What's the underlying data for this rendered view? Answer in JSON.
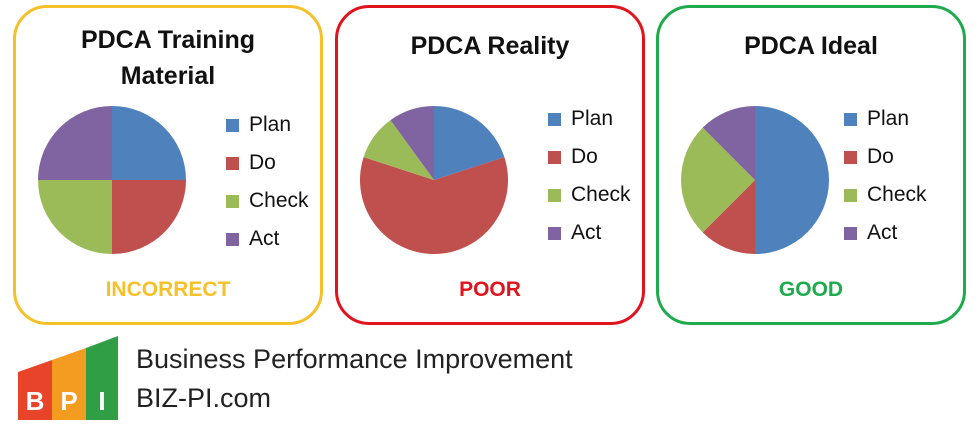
{
  "legend": {
    "labels": [
      "Plan",
      "Do",
      "Check",
      "Act"
    ],
    "colors": [
      "#4f81bd",
      "#c0504d",
      "#9bbb59",
      "#8064a2"
    ]
  },
  "panels": [
    {
      "title": "PDCA Training Material",
      "verdict": "INCORRECT",
      "border_color": "#f5c02a",
      "verdict_color": "#f5c02a"
    },
    {
      "title": "PDCA Reality",
      "verdict": "POOR",
      "border_color": "#e0141d",
      "verdict_color": "#e0141d"
    },
    {
      "title": "PDCA Ideal",
      "verdict": "GOOD",
      "border_color": "#1faa4d",
      "verdict_color": "#1faa4d"
    }
  ],
  "chart_data": [
    {
      "type": "pie",
      "title": "PDCA Training Material",
      "categories": [
        "Plan",
        "Do",
        "Check",
        "Act"
      ],
      "values": [
        25,
        25,
        25,
        25
      ]
    },
    {
      "type": "pie",
      "title": "PDCA Reality",
      "categories": [
        "Plan",
        "Do",
        "Check",
        "Act"
      ],
      "values": [
        20,
        60,
        10,
        10
      ]
    },
    {
      "type": "pie",
      "title": "PDCA Ideal",
      "categories": [
        "Plan",
        "Do",
        "Check",
        "Act"
      ],
      "values": [
        50,
        12.5,
        25,
        12.5
      ]
    }
  ],
  "brand": {
    "name": "Business Performance Improvement",
    "url": "BIZ-PI.com",
    "logo_letters": [
      "B",
      "P",
      "I"
    ],
    "logo_colors": [
      "#e8442a",
      "#f39c1f",
      "#2f9e44"
    ]
  }
}
